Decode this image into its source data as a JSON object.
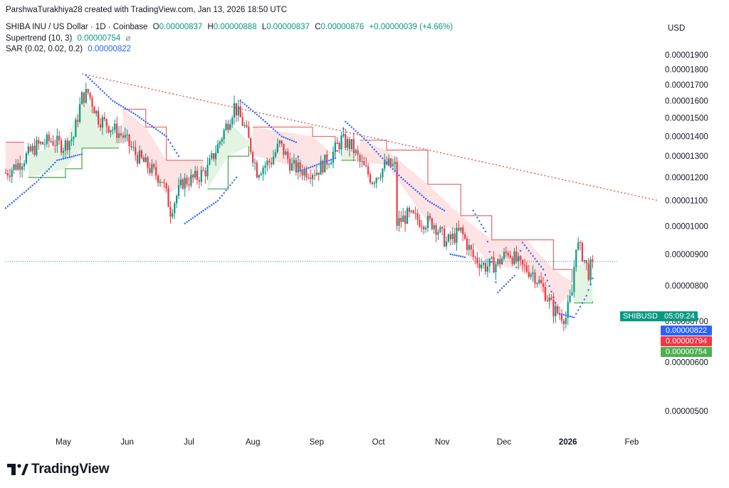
{
  "header": {
    "byline": "ParshwaTurakhiya28 created with TradingView.com, Jan 13, 2026 18:50 UTC",
    "symbol_title": "SHIBA INU / US Dollar · 1D · Coinbase",
    "open_label": "O",
    "open": "0.00000837",
    "high_label": "H",
    "high": "0.00000888",
    "low_label": "L",
    "low": "0.00000837",
    "close_label": "C",
    "close": "0.00000876",
    "change": "+0.00000039 (+4.66%)",
    "supertrend_label": "Supertrend (10, 3)",
    "supertrend_value": "0.00000754",
    "sar_label": "SAR (0.02, 0.02, 0.2)",
    "sar_value": "0.00000822",
    "currency": "USD"
  },
  "price_tags": {
    "symbol": "SHIBUSD",
    "countdown": "05:09:24",
    "sar": "0.00000822",
    "red": "0.00000794",
    "supertrend": "0.00000754"
  },
  "colors": {
    "up": "#089981",
    "down": "#f23645",
    "sar": "#2962ff",
    "supertrend_up": "#4caf50",
    "supertrend_down": "#e57373",
    "fill_up": "#e3f4e3",
    "fill_down": "#fde3e3",
    "trendline": "#e06060",
    "tag_blue": "#2962ff",
    "tag_red": "#f23645",
    "tag_green": "#4caf50"
  },
  "branding": {
    "logo_text": "TradingView"
  },
  "chart_data": {
    "type": "line",
    "ylabel": "USD",
    "y_scale": "log",
    "ylim": [
      4.7e-06,
      2e-05
    ],
    "y_ticks": [
      "0.00000500",
      "0.00000600",
      "0.00000700",
      "0.00000800",
      "0.00000900",
      "0.00001000",
      "0.00001100",
      "0.00001200",
      "0.00001300",
      "0.00001400",
      "0.00001500",
      "0.00001600",
      "0.00001700",
      "0.00001800",
      "0.00001900"
    ],
    "y_tick_values": [
      5e-06,
      6e-06,
      7e-06,
      8e-06,
      9e-06,
      1e-05,
      1.1e-05,
      1.2e-05,
      1.3e-05,
      1.4e-05,
      1.5e-05,
      1.6e-05,
      1.7e-05,
      1.8e-05,
      1.9e-05
    ],
    "x_ticks": [
      "May",
      "Jun",
      "Jul",
      "Aug",
      "Sep",
      "Oct",
      "Nov",
      "Dec",
      "2026",
      "Feb"
    ],
    "x_tick_dates": [
      "2025-05-01",
      "2025-06-01",
      "2025-07-01",
      "2025-08-01",
      "2025-09-01",
      "2025-10-01",
      "2025-11-01",
      "2025-12-01",
      "2026-01-01",
      "2026-02-01"
    ],
    "x_tick_bold": [
      false,
      false,
      false,
      false,
      false,
      false,
      false,
      false,
      true,
      false
    ],
    "xlim": [
      "2025-04-03",
      "2026-02-14"
    ],
    "last_price": 8.76e-06,
    "trendline": [
      [
        "2025-05-10",
        1.77e-05
      ],
      [
        "2026-02-25",
        1.08e-05
      ]
    ],
    "close_series": [
      [
        "2025-04-03",
        1.22e-05
      ],
      [
        "2025-04-10",
        1.27e-05
      ],
      [
        "2025-04-18",
        1.35e-05
      ],
      [
        "2025-04-25",
        1.38e-05
      ],
      [
        "2025-05-01",
        1.35e-05
      ],
      [
        "2025-05-06",
        1.4e-05
      ],
      [
        "2025-05-10",
        1.62e-05
      ],
      [
        "2025-05-13",
        1.65e-05
      ],
      [
        "2025-05-18",
        1.5e-05
      ],
      [
        "2025-05-24",
        1.45e-05
      ],
      [
        "2025-05-30",
        1.4e-05
      ],
      [
        "2025-06-05",
        1.31e-05
      ],
      [
        "2025-06-12",
        1.24e-05
      ],
      [
        "2025-06-18",
        1.19e-05
      ],
      [
        "2025-06-22",
        1.06e-05
      ],
      [
        "2025-06-28",
        1.18e-05
      ],
      [
        "2025-07-05",
        1.2e-05
      ],
      [
        "2025-07-10",
        1.24e-05
      ],
      [
        "2025-07-15",
        1.35e-05
      ],
      [
        "2025-07-20",
        1.48e-05
      ],
      [
        "2025-07-23",
        1.57e-05
      ],
      [
        "2025-07-28",
        1.45e-05
      ],
      [
        "2025-08-03",
        1.23e-05
      ],
      [
        "2025-08-10",
        1.28e-05
      ],
      [
        "2025-08-14",
        1.36e-05
      ],
      [
        "2025-08-20",
        1.25e-05
      ],
      [
        "2025-08-26",
        1.23e-05
      ],
      [
        "2025-09-01",
        1.23e-05
      ],
      [
        "2025-09-08",
        1.3e-05
      ],
      [
        "2025-09-13",
        1.38e-05
      ],
      [
        "2025-09-18",
        1.35e-05
      ],
      [
        "2025-09-22",
        1.27e-05
      ],
      [
        "2025-09-28",
        1.19e-05
      ],
      [
        "2025-10-05",
        1.26e-05
      ],
      [
        "2025-10-09",
        1.25e-05
      ],
      [
        "2025-10-10",
        1.01e-05
      ],
      [
        "2025-10-15",
        1.04e-05
      ],
      [
        "2025-10-22",
        1.02e-05
      ],
      [
        "2025-10-28",
        1.01e-05
      ],
      [
        "2025-11-03",
        9.4e-06
      ],
      [
        "2025-11-10",
        9.8e-06
      ],
      [
        "2025-11-16",
        8.9e-06
      ],
      [
        "2025-11-22",
        8.6e-06
      ],
      [
        "2025-11-28",
        8.7e-06
      ],
      [
        "2025-12-03",
        9.1e-06
      ],
      [
        "2025-12-09",
        8.6e-06
      ],
      [
        "2025-12-15",
        8.4e-06
      ],
      [
        "2025-12-20",
        7.9e-06
      ],
      [
        "2025-12-25",
        7.3e-06
      ],
      [
        "2025-12-31",
        7.1e-06
      ],
      [
        "2026-01-03",
        7.8e-06
      ],
      [
        "2026-01-05",
        9.4e-06
      ],
      [
        "2026-01-08",
        9e-06
      ],
      [
        "2026-01-11",
        8.4e-06
      ],
      [
        "2026-01-13",
        8.76e-06
      ]
    ],
    "supertrend": [
      [
        "2025-04-03",
        1.37e-05,
        "down"
      ],
      [
        "2025-04-12",
        1.37e-05,
        "down"
      ],
      [
        "2025-04-14",
        1.2e-05,
        "up"
      ],
      [
        "2025-05-02",
        1.24e-05,
        "up"
      ],
      [
        "2025-05-10",
        1.34e-05,
        "up"
      ],
      [
        "2025-05-28",
        1.34e-05,
        "up"
      ],
      [
        "2025-05-30",
        1.55e-05,
        "down"
      ],
      [
        "2025-06-10",
        1.45e-05,
        "down"
      ],
      [
        "2025-06-20",
        1.28e-05,
        "down"
      ],
      [
        "2025-07-08",
        1.28e-05,
        "down"
      ],
      [
        "2025-07-10",
        1.15e-05,
        "up"
      ],
      [
        "2025-07-20",
        1.3e-05,
        "up"
      ],
      [
        "2025-07-30",
        1.35e-05,
        "up"
      ],
      [
        "2025-08-01",
        1.45e-05,
        "down"
      ],
      [
        "2025-08-30",
        1.4e-05,
        "down"
      ],
      [
        "2025-09-10",
        1.3e-05,
        "down"
      ],
      [
        "2025-09-13",
        1.28e-05,
        "up"
      ],
      [
        "2025-09-20",
        1.28e-05,
        "up"
      ],
      [
        "2025-09-22",
        1.38e-05,
        "down"
      ],
      [
        "2025-10-05",
        1.33e-05,
        "down"
      ],
      [
        "2025-10-25",
        1.17e-05,
        "down"
      ],
      [
        "2025-11-10",
        1.04e-05,
        "down"
      ],
      [
        "2025-11-25",
        9.5e-06,
        "down"
      ],
      [
        "2025-12-12",
        9.5e-06,
        "down"
      ],
      [
        "2025-12-25",
        8.5e-06,
        "down"
      ],
      [
        "2026-01-03",
        8.1e-06,
        "down"
      ],
      [
        "2026-01-04",
        7.5e-06,
        "up"
      ],
      [
        "2026-01-13",
        7.54e-06,
        "up"
      ]
    ],
    "sar": [
      [
        "2025-04-03",
        1.07e-05
      ],
      [
        "2025-04-18",
        1.18e-05
      ],
      [
        "2025-04-28",
        1.28e-05
      ],
      [
        "2025-05-10",
        1.31e-05
      ],
      [
        "2025-05-12",
        1.76e-05
      ],
      [
        "2025-05-25",
        1.6e-05
      ],
      [
        "2025-06-05",
        1.52e-05
      ],
      [
        "2025-06-20",
        1.4e-05
      ],
      [
        "2025-06-26",
        1.3e-05
      ],
      [
        "2025-06-29",
        1.01e-05
      ],
      [
        "2025-07-15",
        1.1e-05
      ],
      [
        "2025-07-24",
        1.2e-05
      ],
      [
        "2025-07-26",
        1.6e-05
      ],
      [
        "2025-08-05",
        1.5e-05
      ],
      [
        "2025-08-15",
        1.4e-05
      ],
      [
        "2025-08-22",
        1.37e-05
      ],
      [
        "2025-08-24",
        1.23e-05
      ],
      [
        "2025-09-10",
        1.29e-05
      ],
      [
        "2025-09-15",
        1.48e-05
      ],
      [
        "2025-09-25",
        1.38e-05
      ],
      [
        "2025-10-02",
        1.3e-05
      ],
      [
        "2025-10-12",
        1.2e-05
      ],
      [
        "2025-10-25",
        1.1e-05
      ],
      [
        "2025-11-02",
        1.06e-05
      ],
      [
        "2025-11-05",
        9e-06
      ],
      [
        "2025-11-12",
        8.9e-06
      ],
      [
        "2025-11-16",
        1.06e-05
      ],
      [
        "2025-11-22",
        9.8e-06
      ],
      [
        "2025-11-28",
        7.8e-06
      ],
      [
        "2025-12-06",
        8.3e-06
      ],
      [
        "2025-12-10",
        9.4e-06
      ],
      [
        "2025-12-20",
        8.5e-06
      ],
      [
        "2025-12-28",
        7.2e-06
      ],
      [
        "2026-01-04",
        7.1e-06
      ],
      [
        "2026-01-10",
        7.7e-06
      ],
      [
        "2026-01-13",
        8.22e-06
      ]
    ]
  }
}
